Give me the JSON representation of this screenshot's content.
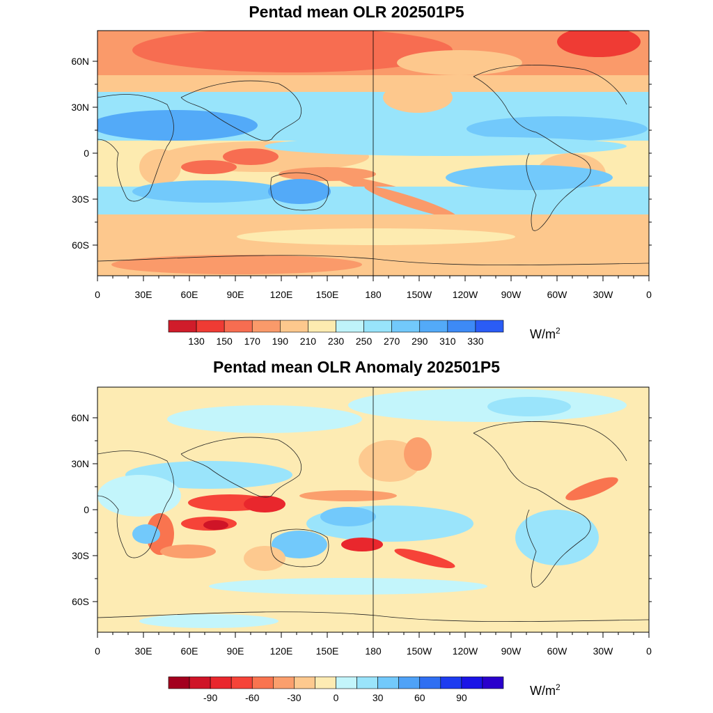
{
  "panels": [
    {
      "title": "Pentad mean OLR 202501P5",
      "lat_labels": [
        "60N",
        "30N",
        "0",
        "30S",
        "60S"
      ],
      "lon_labels": [
        "0",
        "30E",
        "60E",
        "90E",
        "120E",
        "150E",
        "180",
        "150W",
        "120W",
        "90W",
        "60W",
        "30W",
        "0"
      ],
      "colorbar": {
        "colors": [
          "#d01c2a",
          "#ef3b34",
          "#f76d51",
          "#fa9a6a",
          "#fdc88d",
          "#fdebb0",
          "#bff3fa",
          "#98e4fb",
          "#72c9fb",
          "#53aaf8",
          "#3d8af6",
          "#2a5cf5"
        ],
        "labels": [
          "130",
          "150",
          "170",
          "190",
          "210",
          "230",
          "250",
          "270",
          "290",
          "310",
          "330"
        ],
        "unit_base": "W/m",
        "unit_exp": "2"
      }
    },
    {
      "title": "Pentad mean OLR Anomaly 202501P5",
      "lat_labels": [
        "60N",
        "30N",
        "0",
        "30S",
        "60S"
      ],
      "lon_labels": [
        "0",
        "30E",
        "60E",
        "90E",
        "120E",
        "150E",
        "180",
        "150W",
        "120W",
        "90W",
        "60W",
        "30W",
        "0"
      ],
      "colorbar": {
        "colors": [
          "#a3001e",
          "#cf1427",
          "#e9272d",
          "#f64338",
          "#f9744f",
          "#fb9f6d",
          "#fdc98f",
          "#fdebb3",
          "#c3f5fb",
          "#9ae4fb",
          "#72c9fb",
          "#4fa2f7",
          "#2f6ff2",
          "#1d3cf0",
          "#1a14e6",
          "#2a00cc"
        ],
        "labels": [
          "-90",
          "-60",
          "-30",
          "0",
          "30",
          "60",
          "90"
        ],
        "unit_base": "W/m",
        "unit_exp": "2"
      }
    }
  ]
}
